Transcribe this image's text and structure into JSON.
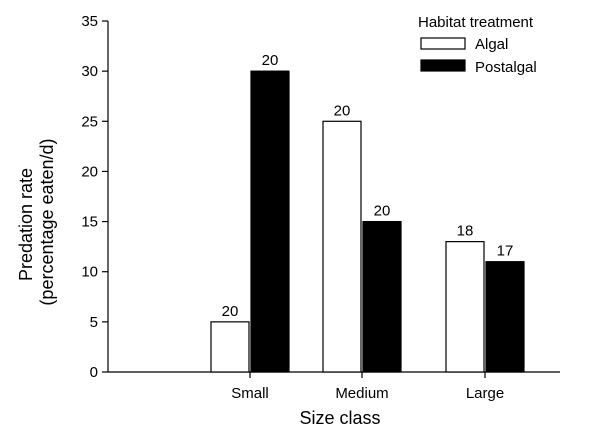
{
  "chart_data": {
    "type": "bar",
    "categories": [
      "Small",
      "Medium",
      "Large"
    ],
    "series": [
      {
        "name": "Algal",
        "values": [
          5,
          25,
          13
        ],
        "n_labels": [
          "20",
          "20",
          "18"
        ],
        "color": "#ffffff"
      },
      {
        "name": "Postalgal",
        "values": [
          30,
          15,
          11
        ],
        "n_labels": [
          "20",
          "20",
          "17"
        ],
        "color": "#000000"
      }
    ],
    "title": "",
    "xlabel": "Size class",
    "ylabel_line1": "Predation rate",
    "ylabel_line2": "(percentage eaten/d)",
    "ylim": [
      0,
      35
    ],
    "yticks": [
      0,
      5,
      10,
      15,
      20,
      25,
      30,
      35
    ],
    "legend": {
      "title": "Habitat treatment",
      "placement": "top-right"
    },
    "grid": false
  }
}
